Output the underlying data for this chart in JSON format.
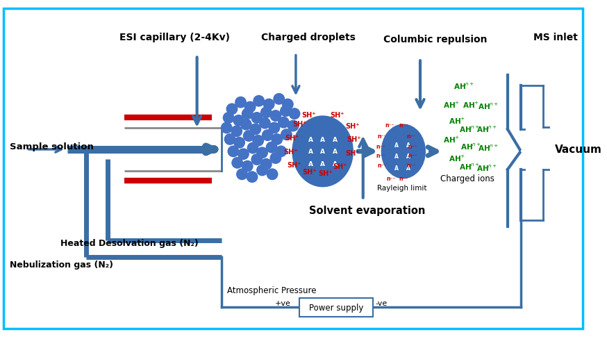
{
  "bg_color": "#ffffff",
  "border_color": "#00bfff",
  "dark_blue": "#1a3a6b",
  "medium_blue": "#3a6ea5",
  "red_color": "#cc0000",
  "green_color": "#008000",
  "droplet_color": "#4472c4",
  "labels": {
    "esi_capillary": "ESI capillary (2-4Kv)",
    "charged_droplets": "Charged droplets",
    "columbic_repulsion": "Columbic repulsion",
    "ms_inlet": "MS inlet",
    "sample_solution": "Sample solution",
    "heated_desolvation": "Heated Desolvation gas (N₂)",
    "nebulization_gas": "Nebulization gas (N₂)",
    "solvent_evaporation": "Solvent evaporation",
    "atmospheric_pressure": "Atmospheric Pressure",
    "power_supply": "Power supply",
    "rayleigh_limit": "Rayleigh limit",
    "charged_ions": "Charged ions",
    "vacuum": "Vacuum",
    "positive_ve": "+ve",
    "negative_ve": "-ve"
  }
}
